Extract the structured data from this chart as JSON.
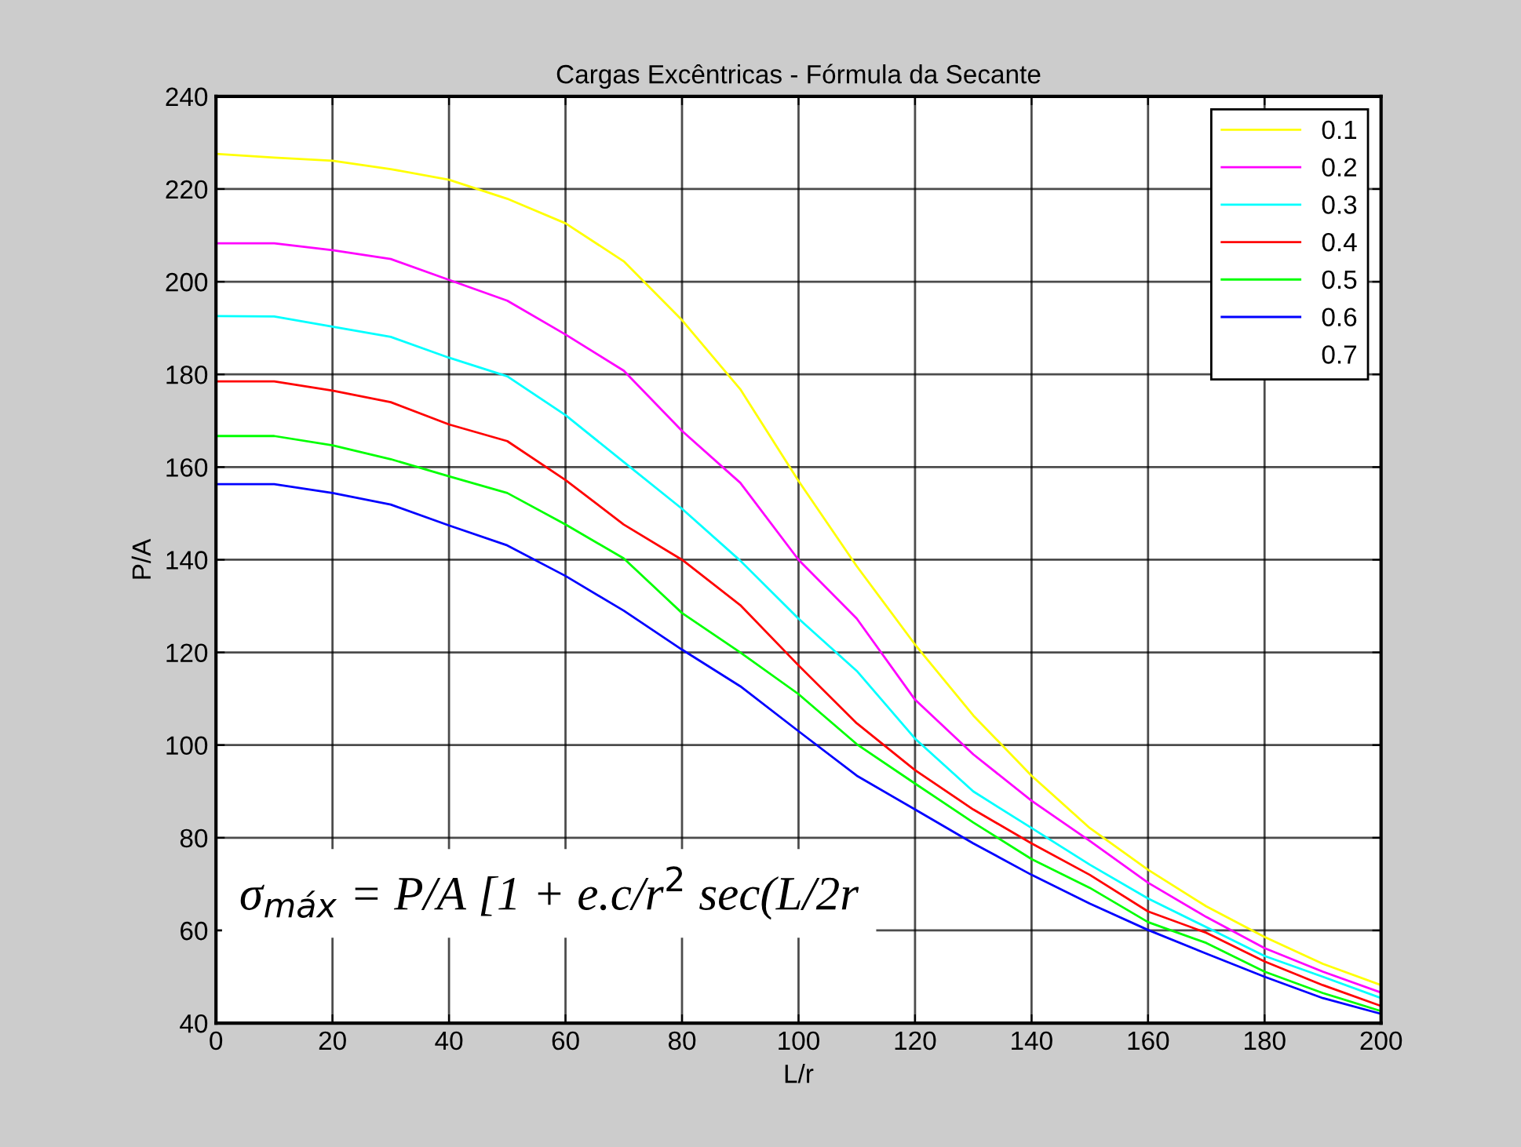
{
  "chart_data": {
    "type": "line",
    "title": "Cargas Excêntricas - Fórmula da Secante",
    "xlabel": "L/r",
    "ylabel": "P/A",
    "x": [
      0,
      10,
      20,
      30,
      40,
      50,
      60,
      70,
      80,
      90,
      100,
      110,
      120,
      130,
      140,
      150,
      160,
      170,
      180,
      190,
      200
    ],
    "series": [
      {
        "name": "0.1",
        "color": "#ffff00",
        "values": [
          227.6,
          226.8,
          226.1,
          224.3,
          222,
          217.9,
          212.6,
          204.4,
          191.7,
          176.8,
          157,
          138.6,
          121.7,
          106.4,
          93.4,
          82.1,
          73.1,
          65.2,
          58.6,
          52.8,
          48.2
        ]
      },
      {
        "name": "0.2",
        "color": "#ff00ff",
        "values": [
          208.3,
          208.3,
          206.8,
          204.9,
          200.4,
          195.9,
          188.6,
          180.8,
          167.8,
          156.6,
          140,
          127.3,
          109.8,
          98,
          88,
          79.3,
          70.3,
          62.9,
          56.2,
          51.1,
          46.6
        ]
      },
      {
        "name": "0.3",
        "color": "#00ffff",
        "values": [
          192.6,
          192.5,
          190.3,
          188.1,
          183.6,
          179.6,
          171.2,
          161.1,
          151,
          139.8,
          127.3,
          116,
          101.4,
          90,
          82.1,
          74.2,
          66.9,
          60.7,
          54.5,
          50,
          45.4
        ]
      },
      {
        "name": "0.4",
        "color": "#ff0000",
        "values": [
          178.5,
          178.5,
          176.5,
          174,
          169.2,
          165.6,
          157.2,
          147.6,
          140,
          130.2,
          117.2,
          104.7,
          94.6,
          86.1,
          78.8,
          72,
          64.1,
          59.5,
          53.3,
          48.2,
          43.7
        ]
      },
      {
        "name": "0.5",
        "color": "#00ff00",
        "values": [
          166.7,
          166.7,
          164.7,
          161.7,
          158,
          154.4,
          147.6,
          140.3,
          128.5,
          120,
          111,
          100.2,
          91.7,
          83.3,
          75.4,
          69.2,
          61.8,
          57.3,
          51.1,
          46.5,
          42.6
        ]
      },
      {
        "name": "0.6",
        "color": "#0000ff",
        "values": [
          156.3,
          156.3,
          154.4,
          151.9,
          147.4,
          143.1,
          136.5,
          129,
          120.6,
          112.7,
          103,
          93.4,
          86.1,
          78.8,
          72,
          65.8,
          60.1,
          55,
          50,
          45.4,
          42
        ]
      },
      {
        "name": "0.7",
        "values": [
          null,
          null,
          null,
          null,
          null,
          null,
          null,
          null,
          null,
          null,
          null,
          null,
          null,
          null,
          null,
          null,
          null,
          null,
          null,
          null,
          null
        ]
      }
    ],
    "xlim": [
      0,
      200
    ],
    "xticks": [
      0,
      20,
      40,
      60,
      80,
      100,
      120,
      140,
      160,
      180,
      200
    ],
    "ylim": [
      40,
      240
    ],
    "yticks": [
      40,
      60,
      80,
      100,
      120,
      140,
      160,
      180,
      200,
      220,
      240
    ],
    "grid": true,
    "legend": "top right",
    "marker": "none",
    "line_style": "solid",
    "annotations": [
      "σ$_{máx}$ = P/A [1 + e.c/r$^{2}$ sec(L/2r"
    ]
  }
}
